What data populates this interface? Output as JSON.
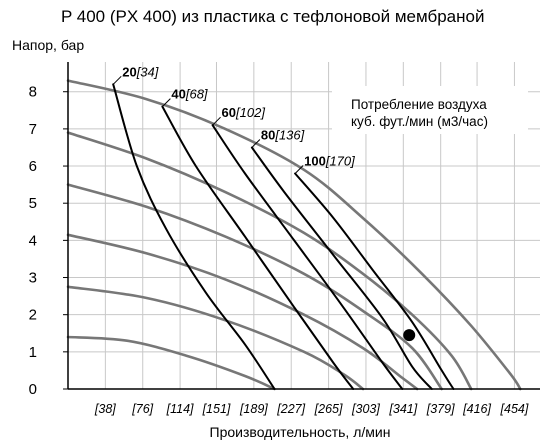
{
  "chart_data": {
    "type": "line",
    "title": "P 400 (PX 400) из пластика с тефлоновой мембраной",
    "ylabel": "Напор, бар",
    "xlabel": "Производительность, л/мин",
    "ylim": [
      0,
      8.8
    ],
    "xlim": [
      0,
      480
    ],
    "y_ticks": [
      "0",
      "1",
      "2",
      "3",
      "4",
      "5",
      "6",
      "7",
      "8"
    ],
    "x_tick_values": [
      38,
      76,
      114,
      151,
      189,
      227,
      265,
      303,
      341,
      379,
      416,
      454
    ],
    "x_ticks": [
      "[38]",
      "[76]",
      "[114]",
      "[151]",
      "[189]",
      "[227]",
      "[265]",
      "[303]",
      "[341]",
      "[379]",
      "[416]",
      "[454]"
    ],
    "grid": true,
    "legend": {
      "line1": "Потребление воздуха",
      "line2": "куб. фут./мин (м3/час)",
      "position": "top-right"
    },
    "performance_curves": [
      {
        "points": [
          [
            0,
            8.3
          ],
          [
            80,
            7.8
          ],
          [
            160,
            7.0
          ],
          [
            240,
            5.9
          ],
          [
            300,
            4.6
          ],
          [
            360,
            3.1
          ],
          [
            410,
            1.7
          ],
          [
            450,
            0.4
          ],
          [
            460,
            0
          ]
        ]
      },
      {
        "points": [
          [
            0,
            6.9
          ],
          [
            80,
            6.2
          ],
          [
            160,
            5.3
          ],
          [
            240,
            4.2
          ],
          [
            300,
            3.1
          ],
          [
            350,
            2.0
          ],
          [
            390,
            0.9
          ],
          [
            410,
            0
          ]
        ]
      },
      {
        "points": [
          [
            0,
            5.5
          ],
          [
            80,
            4.9
          ],
          [
            160,
            4.1
          ],
          [
            240,
            3.1
          ],
          [
            300,
            2.1
          ],
          [
            350,
            1.1
          ],
          [
            380,
            0
          ]
        ]
      },
      {
        "points": [
          [
            0,
            4.15
          ],
          [
            80,
            3.65
          ],
          [
            160,
            2.95
          ],
          [
            240,
            2.0
          ],
          [
            300,
            1.1
          ],
          [
            340,
            0.3
          ],
          [
            355,
            0
          ]
        ]
      },
      {
        "points": [
          [
            0,
            2.75
          ],
          [
            80,
            2.45
          ],
          [
            160,
            1.85
          ],
          [
            240,
            1.0
          ],
          [
            280,
            0.4
          ],
          [
            300,
            0
          ]
        ]
      },
      {
        "points": [
          [
            0,
            1.4
          ],
          [
            60,
            1.3
          ],
          [
            120,
            0.9
          ],
          [
            180,
            0.35
          ],
          [
            210,
            0
          ]
        ]
      }
    ],
    "air_consumption_curves": [
      {
        "cfm": "20",
        "m3h": "[34]",
        "points": [
          [
            46,
            8.2
          ],
          [
            70,
            6.0
          ],
          [
            100,
            4.3
          ],
          [
            140,
            2.6
          ],
          [
            180,
            1.2
          ],
          [
            210,
            0
          ]
        ]
      },
      {
        "cfm": "40",
        "m3h": "[68]",
        "points": [
          [
            96,
            7.6
          ],
          [
            130,
            6.0
          ],
          [
            180,
            4.1
          ],
          [
            230,
            2.2
          ],
          [
            270,
            0.7
          ],
          [
            290,
            0
          ]
        ]
      },
      {
        "cfm": "60",
        "m3h": "[102]",
        "points": [
          [
            147,
            7.1
          ],
          [
            180,
            5.8
          ],
          [
            230,
            4.0
          ],
          [
            280,
            2.2
          ],
          [
            320,
            0.7
          ],
          [
            340,
            0
          ]
        ]
      },
      {
        "cfm": "80",
        "m3h": "[136]",
        "points": [
          [
            187,
            6.5
          ],
          [
            220,
            5.3
          ],
          [
            270,
            3.6
          ],
          [
            320,
            1.9
          ],
          [
            350,
            0.6
          ],
          [
            370,
            0
          ]
        ]
      },
      {
        "cfm": "100",
        "m3h": "[170]",
        "points": [
          [
            231,
            5.8
          ],
          [
            270,
            4.6
          ],
          [
            310,
            3.2
          ],
          [
            350,
            1.8
          ],
          [
            380,
            0.5
          ],
          [
            392,
            0
          ]
        ]
      }
    ],
    "operating_point": {
      "x": 347,
      "y": 1.45
    },
    "colors": {
      "performance": "#777777",
      "air": "#000000",
      "grid": "#c8c8c8",
      "point": "#000000"
    }
  }
}
